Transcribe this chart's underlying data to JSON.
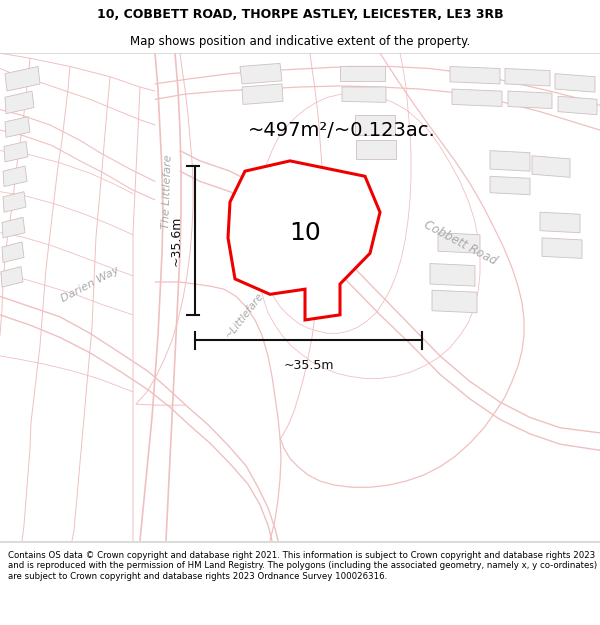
{
  "title_line1": "10, COBBETT ROAD, THORPE ASTLEY, LEICESTER, LE3 3RB",
  "title_line2": "Map shows position and indicative extent of the property.",
  "area_text": "~497m²/~0.123ac.",
  "dim_h": "~35.5m",
  "dim_v": "~35.6m",
  "label": "10",
  "copyright_text": "Contains OS data © Crown copyright and database right 2021. This information is subject to Crown copyright and database rights 2023 and is reproduced with the permission of HM Land Registry. The polygons (including the associated geometry, namely x, y co-ordinates) are subject to Crown copyright and database rights 2023 Ordnance Survey 100026316.",
  "road_color": "#f0c0c0",
  "building_edge_color": "#d0c0c0",
  "building_face_color": "#eeeeee",
  "property_color": "#ee0000",
  "annotation_color": "#111111",
  "street_label_color": "#aaaaaa",
  "map_bg": "#ffffff",
  "title_fontsize": 9.0,
  "subtitle_fontsize": 8.5,
  "area_fontsize": 14,
  "label_fontsize": 18,
  "dim_fontsize": 9,
  "copyright_fontsize": 6.2
}
